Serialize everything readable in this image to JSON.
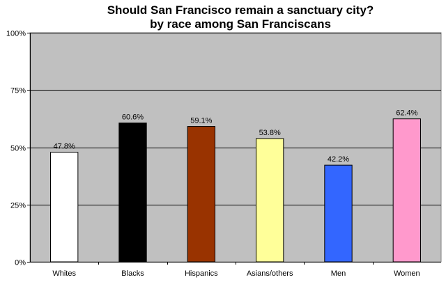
{
  "chart_data": {
    "type": "bar",
    "title": "Should San Francisco remain a sanctuary city?",
    "subtitle": "by race among San Franciscans",
    "xlabel": "",
    "ylabel": "",
    "categories": [
      "Whites",
      "Blacks",
      "Hispanics",
      "Asians/others",
      "Men",
      "Women"
    ],
    "values": [
      47.8,
      60.6,
      59.1,
      53.8,
      42.2,
      62.4
    ],
    "value_labels": [
      "47.8%",
      "60.6%",
      "59.1%",
      "53.8%",
      "42.2%",
      "62.4%"
    ],
    "bar_colors": [
      "#ffffff",
      "#000000",
      "#993300",
      "#ffff99",
      "#3366ff",
      "#ff99cc"
    ],
    "ylim": [
      0,
      100
    ],
    "y_ticks": [
      0,
      25,
      50,
      75,
      100
    ],
    "y_tick_labels": [
      "0%",
      "25%",
      "50%",
      "75%",
      "100%"
    ],
    "grid": true,
    "legend": "none",
    "plot_background": "#c0c0c0"
  }
}
